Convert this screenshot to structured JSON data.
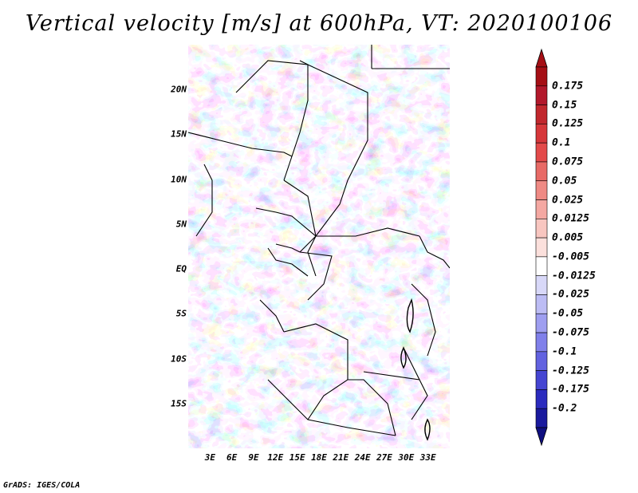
{
  "title": "Vertical velocity [m/s] at 600hPa, VT: 2020100106",
  "footer": "GrADS: IGES/COLA",
  "map": {
    "lat_range": [
      -20,
      25
    ],
    "lon_range": [
      0,
      36
    ],
    "lat_labels": [
      {
        "lat": 20,
        "label": "20N"
      },
      {
        "lat": 15,
        "label": "15N"
      },
      {
        "lat": 10,
        "label": "10N"
      },
      {
        "lat": 5,
        "label": "5N"
      },
      {
        "lat": 0,
        "label": "EQ"
      },
      {
        "lat": -5,
        "label": "5S"
      },
      {
        "lat": -10,
        "label": "10S"
      },
      {
        "lat": -15,
        "label": "15S"
      }
    ],
    "lon_labels": [
      {
        "lon": 3,
        "label": "3E"
      },
      {
        "lon": 6,
        "label": "6E"
      },
      {
        "lon": 9,
        "label": "9E"
      },
      {
        "lon": 12,
        "label": "12E"
      },
      {
        "lon": 15,
        "label": "15E"
      },
      {
        "lon": 18,
        "label": "18E"
      },
      {
        "lon": 21,
        "label": "21E"
      },
      {
        "lon": 24,
        "label": "24E"
      },
      {
        "lon": 27,
        "label": "27E"
      },
      {
        "lon": 30,
        "label": "30E"
      },
      {
        "lon": 33,
        "label": "33E"
      }
    ]
  },
  "colorbar": {
    "levels": [
      {
        "label": "0.175",
        "color": "#b2182b"
      },
      {
        "label": "0.15",
        "color": "#c1272d"
      },
      {
        "label": "0.125",
        "color": "#d6373a"
      },
      {
        "label": "0.1",
        "color": "#e34a4a"
      },
      {
        "label": "0.075",
        "color": "#e86a66"
      },
      {
        "label": "0.05",
        "color": "#ef8a84"
      },
      {
        "label": "0.025",
        "color": "#f4a8a2"
      },
      {
        "label": "0.0125",
        "color": "#f8c6c0"
      },
      {
        "label": "0.005",
        "color": "#fbe0dc"
      },
      {
        "label": "-0.005",
        "color": "#ffffff"
      },
      {
        "label": "-0.0125",
        "color": "#d8d8f8"
      },
      {
        "label": "-0.025",
        "color": "#bcbcf4"
      },
      {
        "label": "-0.05",
        "color": "#9e9ef0"
      },
      {
        "label": "-0.075",
        "color": "#8080ea"
      },
      {
        "label": "-0.1",
        "color": "#6262e0"
      },
      {
        "label": "-0.125",
        "color": "#4545d2"
      },
      {
        "label": "-0.175",
        "color": "#2b2bbe"
      },
      {
        "label": "-0.2",
        "color": "#1a1a9e"
      }
    ],
    "top_arrow_color": "#a50f15",
    "bottom_arrow_color": "#0f0f80"
  }
}
